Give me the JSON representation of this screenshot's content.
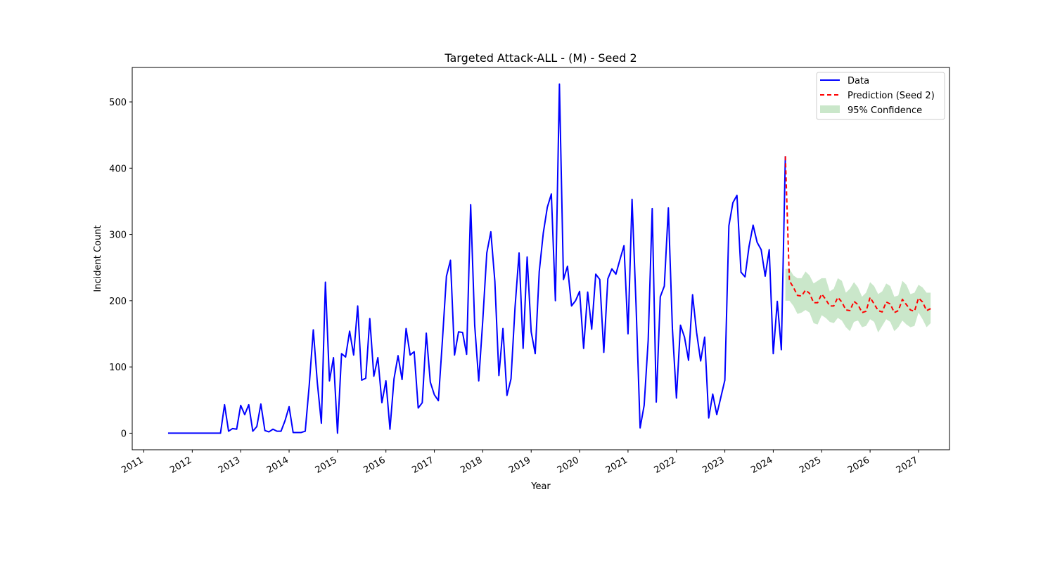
{
  "chart_data": {
    "type": "line",
    "title": "Targeted Attack-ALL - (M) - Seed 2",
    "xlabel": "Year",
    "ylabel": "Incident Count",
    "xlim": [
      2010.76,
      2027.64
    ],
    "ylim": [
      -25,
      552
    ],
    "x_ticks": [
      2011,
      2012,
      2013,
      2014,
      2015,
      2016,
      2017,
      2018,
      2019,
      2020,
      2021,
      2022,
      2023,
      2024,
      2025,
      2026,
      2027
    ],
    "x_tick_labels": [
      "2011",
      "2012",
      "2013",
      "2014",
      "2015",
      "2016",
      "2017",
      "2018",
      "2019",
      "2020",
      "2021",
      "2022",
      "2023",
      "2024",
      "2025",
      "2026",
      "2027"
    ],
    "y_ticks": [
      0,
      100,
      200,
      300,
      400,
      500
    ],
    "y_tick_labels": [
      "0",
      "100",
      "200",
      "300",
      "400",
      "500"
    ],
    "grid": false,
    "legend_position": "top-right",
    "series": [
      {
        "name": "Data",
        "style": "line",
        "color": "#0000ff",
        "x_start": "2011-07",
        "values": [
          0,
          0,
          0,
          0,
          0,
          0,
          0,
          0,
          0,
          0,
          0,
          0,
          0,
          0,
          43,
          3,
          7,
          6,
          42,
          28,
          43,
          3,
          10,
          44,
          4,
          2,
          6,
          3,
          3,
          19,
          40,
          1,
          1,
          1,
          3,
          73,
          156,
          76,
          15,
          228,
          79,
          114,
          0,
          120,
          115,
          154,
          118,
          192,
          80,
          83,
          173,
          86,
          114,
          46,
          79,
          6,
          82,
          117,
          81,
          158,
          118,
          123,
          38,
          46,
          151,
          77,
          58,
          49,
          140,
          237,
          261,
          118,
          153,
          152,
          119,
          345,
          163,
          79,
          170,
          272,
          304,
          229,
          87,
          158,
          57,
          82,
          190,
          272,
          128,
          266,
          153,
          120,
          244,
          302,
          341,
          361,
          200,
          527,
          232,
          252,
          192,
          200,
          214,
          128,
          213,
          157,
          240,
          232,
          122,
          233,
          248,
          240,
          262,
          283,
          150,
          353,
          192,
          8,
          42,
          140,
          339,
          47,
          206,
          222,
          340,
          158,
          53,
          163,
          145,
          110,
          209,
          152,
          109,
          145,
          23,
          59,
          28,
          54,
          80,
          313,
          348,
          359,
          243,
          236,
          282,
          314,
          288,
          277,
          237,
          277,
          120,
          199,
          126,
          418
        ]
      },
      {
        "name": "Prediction (Seed 2)",
        "style": "dashed",
        "color": "#ff0000",
        "x_start": "2024-04",
        "values": [
          418,
          230,
          220,
          208,
          207,
          216,
          211,
          197,
          197,
          210,
          202,
          192,
          192,
          205,
          198,
          186,
          185,
          199,
          194,
          182,
          184,
          205,
          195,
          185,
          183,
          198,
          195,
          182,
          185,
          202,
          194,
          186,
          184,
          204,
          198,
          185,
          188
        ]
      },
      {
        "name": "95% Confidence",
        "style": "band",
        "color": "#2ca02c",
        "x_start": "2024-04",
        "upper": [
          248,
          248,
          238,
          234,
          234,
          244,
          238,
          226,
          230,
          234,
          234,
          214,
          218,
          234,
          230,
          212,
          218,
          228,
          220,
          206,
          212,
          228,
          222,
          210,
          214,
          226,
          222,
          206,
          208,
          230,
          224,
          210,
          212,
          224,
          220,
          212,
          212
        ],
        "lower": [
          200,
          200,
          192,
          180,
          182,
          186,
          182,
          166,
          164,
          178,
          174,
          168,
          166,
          174,
          170,
          160,
          154,
          168,
          170,
          160,
          162,
          172,
          168,
          152,
          162,
          172,
          168,
          154,
          160,
          170,
          164,
          160,
          162,
          182,
          172,
          160,
          166
        ]
      }
    ]
  }
}
